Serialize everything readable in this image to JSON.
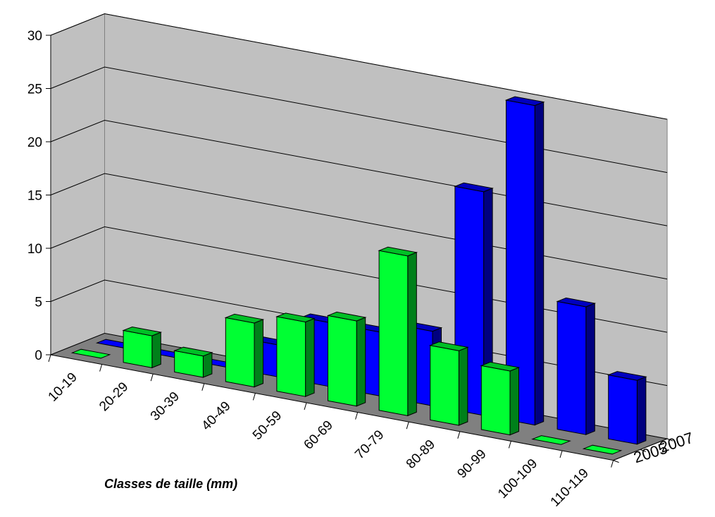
{
  "chart_data": {
    "type": "bar",
    "title": "",
    "xlabel": "Classes de taille (mm)",
    "ylabel": "",
    "ylim": [
      0,
      30
    ],
    "yticks": [
      "0",
      "5",
      "10",
      "15",
      "20",
      "25",
      "30"
    ],
    "categories": [
      "10-19",
      "20-29",
      "30-39",
      "40-49",
      "50-59",
      "60-69",
      "70-79",
      "80-89",
      "90-99",
      "100-109",
      "110-119"
    ],
    "grid": true,
    "style": "3d-clustered-depth",
    "series": [
      {
        "name": "2007",
        "color": "#0000ff",
        "values": [
          0,
          0,
          0,
          3,
          6,
          6,
          7,
          21,
          30,
          12,
          6
        ]
      },
      {
        "name": "2005",
        "color": "#00ff33",
        "values": [
          0,
          3,
          2,
          6,
          7,
          8,
          15,
          7,
          6,
          0,
          0
        ]
      }
    ]
  }
}
